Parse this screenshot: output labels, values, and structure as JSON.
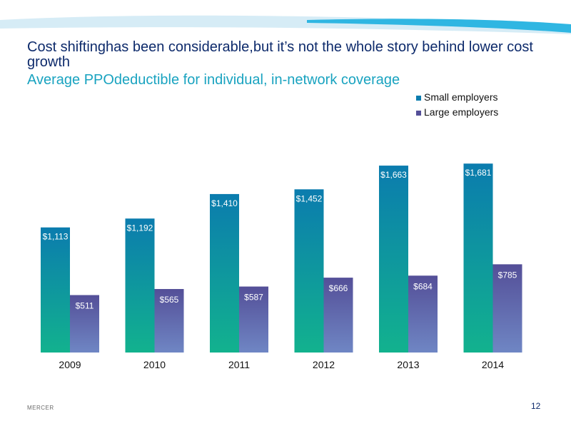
{
  "slide": {
    "title": "Cost shiftinghas  been considerable,but  it’s not the whole story behind lower cost growth",
    "subtitle": "Average PPOdeductible  for individual,  in-network  coverage",
    "footer_brand": "MERCER",
    "page_number": "12"
  },
  "colors": {
    "small_top": "#0b7cae",
    "small_bottom": "#12b28e",
    "large_top": "#544f98",
    "large_bottom": "#6f86c4",
    "band_light": "#cfe9f5",
    "band_dark": "#29b2e0"
  },
  "chart_data": {
    "type": "bar",
    "categories": [
      "2009",
      "2010",
      "2011",
      "2012",
      "2013",
      "2014"
    ],
    "series": [
      {
        "name": "Small employers",
        "values": [
          1113,
          1192,
          1410,
          1452,
          1663,
          1681
        ],
        "labels": [
          "$1,113",
          "$1,192",
          "$1,410",
          "$1,452",
          "$1,663",
          "$1,681"
        ]
      },
      {
        "name": "Large employers",
        "values": [
          511,
          565,
          587,
          666,
          684,
          785
        ],
        "labels": [
          "$511",
          "$565",
          "$587",
          "$666",
          "$684",
          "$785"
        ]
      }
    ],
    "legend_position": "top-right",
    "grid": false,
    "ylim": [
      0,
      1700
    ]
  }
}
